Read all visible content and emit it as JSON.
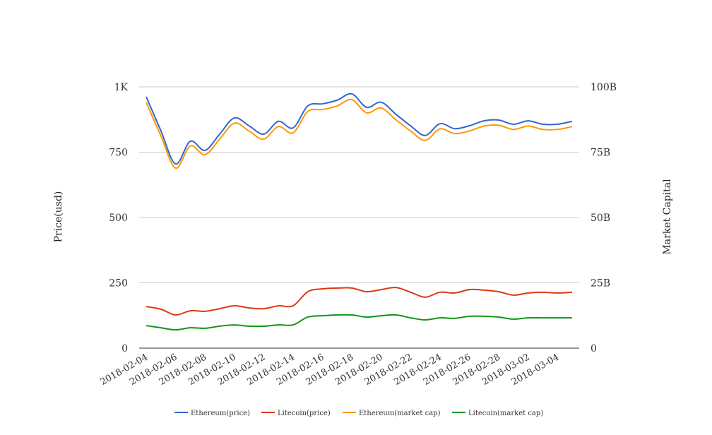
{
  "chart_data": {
    "type": "line",
    "title": "",
    "ylabel": "Price(usd)",
    "y2label": "Market Capital",
    "ylim": [
      0,
      1000
    ],
    "y2lim": [
      0,
      100
    ],
    "grid": true,
    "legend_position": "bottom",
    "y_ticks": [
      "0",
      "250",
      "500",
      "750",
      "1K"
    ],
    "y2_ticks": [
      "0",
      "25B",
      "50B",
      "75B",
      "100B"
    ],
    "x": [
      "2018-02-04",
      "2018-02-05",
      "2018-02-06",
      "2018-02-07",
      "2018-02-08",
      "2018-02-09",
      "2018-02-10",
      "2018-02-11",
      "2018-02-12",
      "2018-02-13",
      "2018-02-14",
      "2018-02-15",
      "2018-02-16",
      "2018-02-17",
      "2018-02-18",
      "2018-02-19",
      "2018-02-20",
      "2018-02-21",
      "2018-02-22",
      "2018-02-23",
      "2018-02-24",
      "2018-02-25",
      "2018-02-26",
      "2018-02-27",
      "2018-02-28",
      "2018-03-01",
      "2018-03-02",
      "2018-03-03",
      "2018-03-04",
      "2018-03-05"
    ],
    "x_tick_labels": [
      "2018-02-04",
      "2018-02-06",
      "2018-02-08",
      "2018-02-10",
      "2018-02-12",
      "2018-02-14",
      "2018-02-16",
      "2018-02-18",
      "2018-02-20",
      "2018-02-22",
      "2018-02-24",
      "2018-02-26",
      "2018-02-28",
      "2018-03-02",
      "2018-03-04"
    ],
    "series": [
      {
        "name": "Ethereum(price)",
        "axis": "left",
        "color": "#3366cc",
        "values": [
          962,
          832,
          705,
          792,
          757,
          819,
          881,
          851,
          819,
          868,
          843,
          927,
          935,
          949,
          973,
          922,
          941,
          895,
          851,
          814,
          859,
          840,
          851,
          870,
          873,
          857,
          870,
          857,
          857,
          868
        ]
      },
      {
        "name": "Litecoin(price)",
        "axis": "left",
        "color": "#dc3912",
        "values": [
          159,
          149,
          127,
          143,
          141,
          151,
          162,
          154,
          151,
          162,
          162,
          216,
          227,
          230,
          230,
          216,
          224,
          232,
          214,
          195,
          214,
          211,
          224,
          222,
          216,
          203,
          211,
          214,
          211,
          214
        ]
      },
      {
        "name": "Ethereum(market cap)",
        "axis": "right",
        "unit": "B",
        "color": "#ff9900",
        "values": [
          94.0,
          81.3,
          68.9,
          77.4,
          74.0,
          80.0,
          86.1,
          83.1,
          80.0,
          84.8,
          82.4,
          90.6,
          91.3,
          92.7,
          95.1,
          90.1,
          91.9,
          87.4,
          83.1,
          79.5,
          83.9,
          82.1,
          83.1,
          85.0,
          85.3,
          83.7,
          85.0,
          83.7,
          83.7,
          84.8
        ]
      },
      {
        "name": "Litecoin(market cap)",
        "axis": "right",
        "unit": "B",
        "color": "#109618",
        "values": [
          8.6,
          7.8,
          7.0,
          7.8,
          7.6,
          8.4,
          8.9,
          8.4,
          8.4,
          8.9,
          8.9,
          11.9,
          12.4,
          12.7,
          12.7,
          11.9,
          12.4,
          12.7,
          11.6,
          10.8,
          11.6,
          11.4,
          12.2,
          12.2,
          11.9,
          11.1,
          11.6,
          11.6,
          11.6,
          11.6
        ]
      }
    ]
  }
}
